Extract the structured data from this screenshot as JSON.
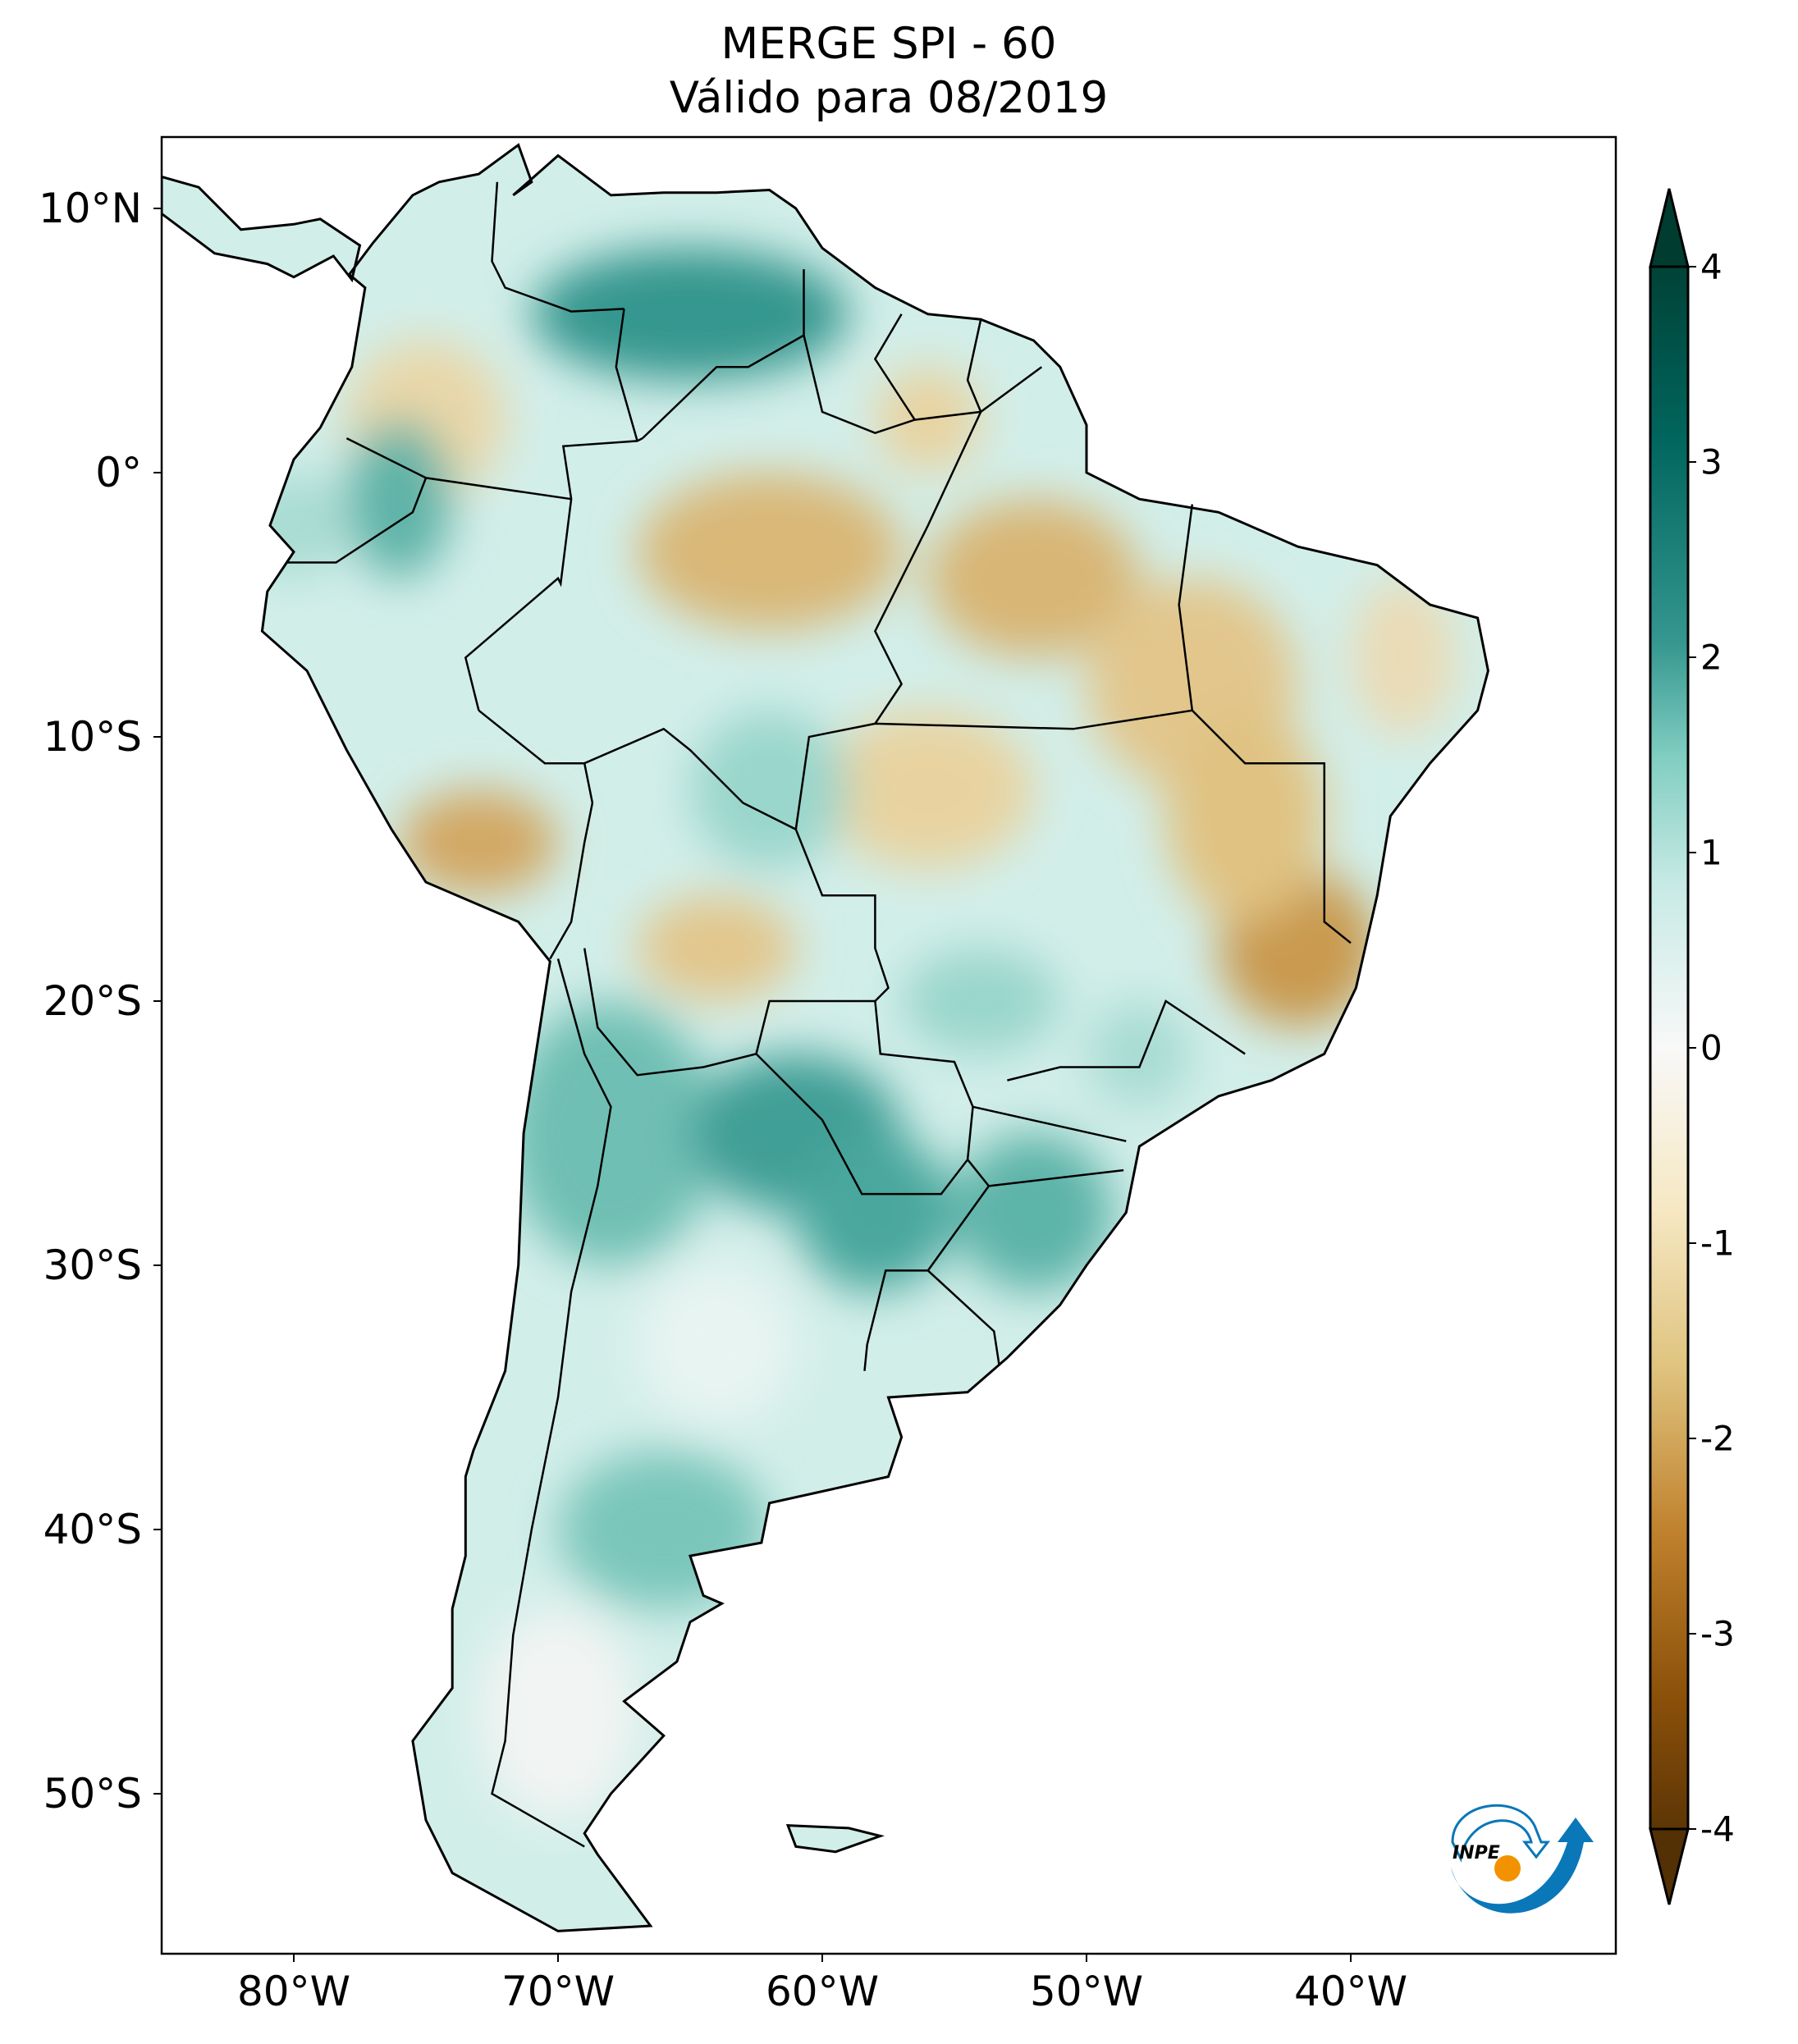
{
  "title": {
    "line1": "MERGE   SPI - 60",
    "line2": "Válido para 08/2019"
  },
  "axes": {
    "lat_labels": [
      "10°N",
      "0°",
      "10°S",
      "20°S",
      "30°S",
      "40°S",
      "50°S"
    ],
    "lat_values": [
      10,
      0,
      -10,
      -20,
      -30,
      -40,
      -50
    ],
    "lon_labels": [
      "80°W",
      "70°W",
      "60°W",
      "50°W",
      "40°W"
    ],
    "lon_values": [
      -80,
      -70,
      -60,
      -50,
      -40
    ],
    "extent": {
      "lon_min": -85,
      "lon_max": -30,
      "lat_min": -56,
      "lat_max": 12.7
    }
  },
  "colorbar": {
    "ticks": [
      "4",
      "3",
      "2",
      "1",
      "0",
      "-1",
      "-2",
      "-3",
      "-4"
    ],
    "range": [
      -4,
      4
    ],
    "extend": "both",
    "colormap": "BrBG",
    "colors": [
      "#543005",
      "#8c510a",
      "#bf812d",
      "#dfc27d",
      "#f6e8c3",
      "#f5f5f5",
      "#c7eae5",
      "#80cdc1",
      "#35978f",
      "#01665e",
      "#003c30"
    ]
  },
  "logo": {
    "text": "INPE",
    "arc_color": "#0a77b8",
    "dot_color": "#f39200"
  }
}
